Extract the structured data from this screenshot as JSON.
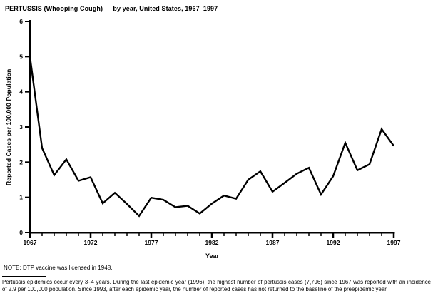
{
  "page": {
    "background_color": "#ffffff",
    "foreground_color": "#000000"
  },
  "title": "PERTUSSIS (Whooping Cough) — by year, United States, 1967–1997",
  "chart_data": {
    "type": "line",
    "title": "PERTUSSIS (Whooping Cough) — by year, United States, 1967–1997",
    "xlabel": "Year",
    "ylabel": "Reported Cases per 100,000 Population",
    "x": [
      1967,
      1968,
      1969,
      1970,
      1971,
      1972,
      1973,
      1974,
      1975,
      1976,
      1977,
      1978,
      1979,
      1980,
      1981,
      1982,
      1983,
      1984,
      1985,
      1986,
      1987,
      1988,
      1989,
      1990,
      1991,
      1992,
      1993,
      1994,
      1995,
      1996,
      1997
    ],
    "values": [
      5.0,
      2.4,
      1.63,
      2.08,
      1.47,
      1.57,
      0.83,
      1.13,
      0.81,
      0.47,
      0.99,
      0.93,
      0.72,
      0.76,
      0.54,
      0.82,
      1.05,
      0.96,
      1.5,
      1.74,
      1.16,
      1.41,
      1.67,
      1.84,
      1.08,
      1.6,
      2.55,
      1.77,
      1.94,
      2.94,
      2.46
    ],
    "ylim": [
      0,
      6
    ],
    "xlim": [
      1967,
      1997
    ],
    "y_ticks": [
      0,
      1,
      2,
      3,
      4,
      5,
      6
    ],
    "x_major_ticks": [
      1967,
      1972,
      1977,
      1982,
      1987,
      1992,
      1997
    ],
    "x_minor_tick_interval": 1,
    "grid": false,
    "legend_position": "none",
    "line_color": "#000000",
    "line_width": 2.4
  },
  "footnotes": {
    "note": "NOTE: DTP vaccine was licensed in 1948.",
    "paragraph": "Pertussis epidemics occur every 3–4 years. During the last epidemic year (1996), the highest number of pertussis cases (7,796) since 1967 was reported with an incidence of 2.9 per 100,000 population. Since 1993, after each epidemic year, the number of reported cases has not returned to the baseline of the preepidemic year."
  }
}
